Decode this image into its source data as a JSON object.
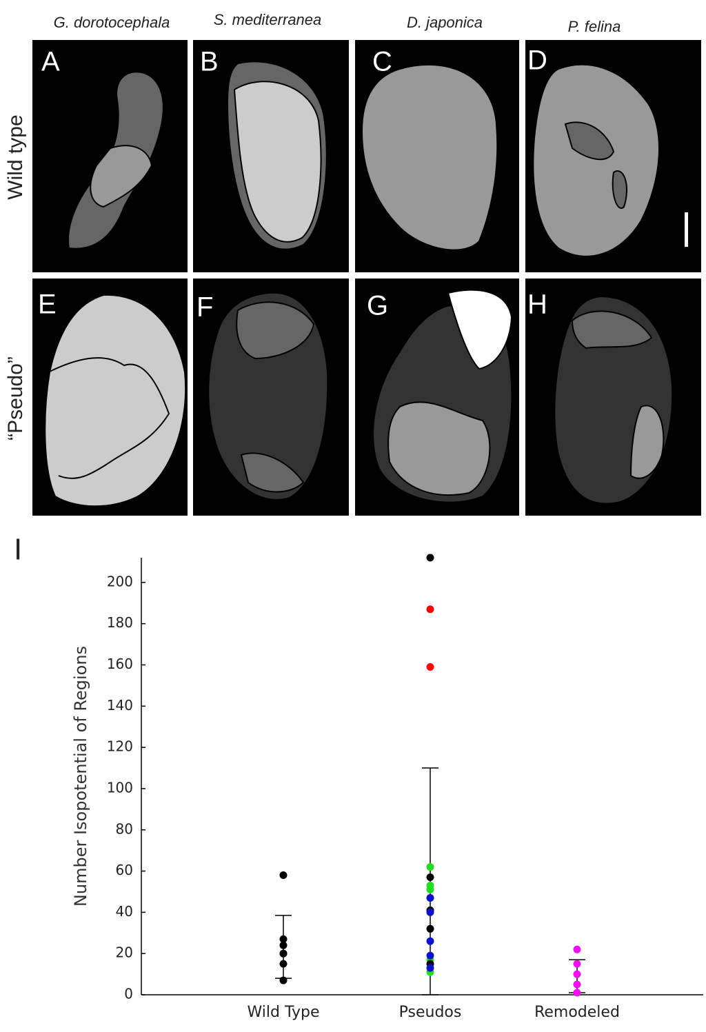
{
  "figure": {
    "columns": [
      "G. dorotocephala",
      "S. mediterranea",
      "D. japonica",
      "P. felina"
    ],
    "rows": [
      "Wild type",
      "“Pseudo”"
    ],
    "panels": [
      "A",
      "B",
      "C",
      "D",
      "E",
      "F",
      "G",
      "H"
    ],
    "chart_label": "I"
  },
  "chart_data": {
    "type": "scatter",
    "ylabel": "Number Isopotential of Regions",
    "categories": [
      "Wild Type",
      "Pseudos",
      "Remodeled"
    ],
    "values": [
      [
        58,
        27,
        24,
        20,
        20,
        15,
        7
      ],
      [
        212,
        187,
        159,
        62,
        53,
        51,
        17,
        11,
        57,
        41,
        32,
        15,
        47,
        40,
        26,
        19,
        13
      ],
      [
        22,
        15,
        10,
        5,
        1
      ]
    ],
    "point_colors": [
      [
        "#000000",
        "#000000",
        "#000000",
        "#000000",
        "#000000",
        "#000000",
        "#000000"
      ],
      [
        "#000000",
        "#ff0000",
        "#ff0000",
        "#22dd22",
        "#22dd22",
        "#22dd22",
        "#22dd22",
        "#22dd22",
        "#000000",
        "#000000",
        "#000000",
        "#000000",
        "#1010cc",
        "#1010cc",
        "#1010cc",
        "#1010cc",
        "#1010cc"
      ],
      [
        "#ee11ee",
        "#ee11ee",
        "#ee11ee",
        "#ee11ee",
        "#ee11ee"
      ]
    ],
    "error_upper": [
      38.5,
      110,
      17
    ],
    "error_lower": [
      8,
      0,
      1
    ],
    "ylim": [
      0,
      212
    ],
    "yticks": [
      0,
      20,
      40,
      60,
      80,
      100,
      120,
      140,
      160,
      180,
      200
    ]
  }
}
